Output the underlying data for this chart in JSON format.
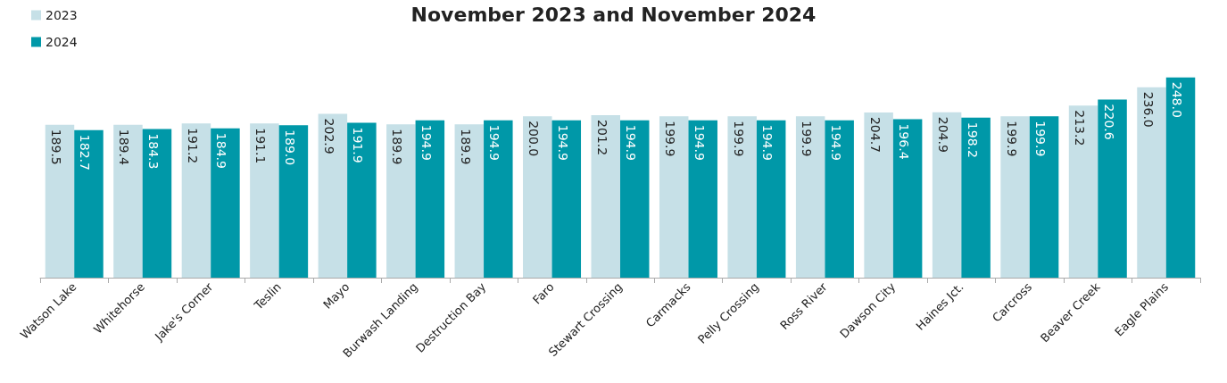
{
  "chart_data": {
    "type": "bar",
    "title": "November 2023 and November 2024",
    "categories": [
      "Watson Lake",
      "Whitehorse",
      "Jake's Corner",
      "Teslin",
      "Mayo",
      "Burwash Landing",
      "Destruction Bay",
      "Faro",
      "Stewart Crossing",
      "Carmacks",
      "Pelly Crossing",
      "Ross River",
      "Dawson City",
      "Haines Jct.",
      "Carcross",
      "Beaver Creek",
      "Eagle Plains"
    ],
    "series": [
      {
        "name": "2023",
        "color": "#c6e0e7",
        "values": [
          189.5,
          189.4,
          191.2,
          191.1,
          202.9,
          189.9,
          189.9,
          200.0,
          201.2,
          199.9,
          199.9,
          199.9,
          204.7,
          204.9,
          199.9,
          213.2,
          236.0
        ],
        "value_labels": [
          "189.5",
          "189.4",
          "191.2",
          "191.1",
          "202.9",
          "189.9",
          "189.9",
          "200.0",
          "201.2",
          "199.9",
          "199.9",
          "199.9",
          "204.7",
          "204.9",
          "199.9",
          "213.2",
          "236.0"
        ]
      },
      {
        "name": "2024",
        "color": "#0098a8",
        "values": [
          182.7,
          184.3,
          184.9,
          189.0,
          191.9,
          194.9,
          194.9,
          194.9,
          194.9,
          194.9,
          194.9,
          194.9,
          196.4,
          198.2,
          199.9,
          220.6,
          248.0
        ],
        "value_labels": [
          "182.7",
          "184.3",
          "184.9",
          "189.0",
          "191.9",
          "194.9",
          "194.9",
          "194.9",
          "194.9",
          "194.9",
          "194.9",
          "194.9",
          "196.4",
          "198.2",
          "199.9",
          "220.6",
          "248.0"
        ]
      }
    ],
    "legend": "top left"
  }
}
